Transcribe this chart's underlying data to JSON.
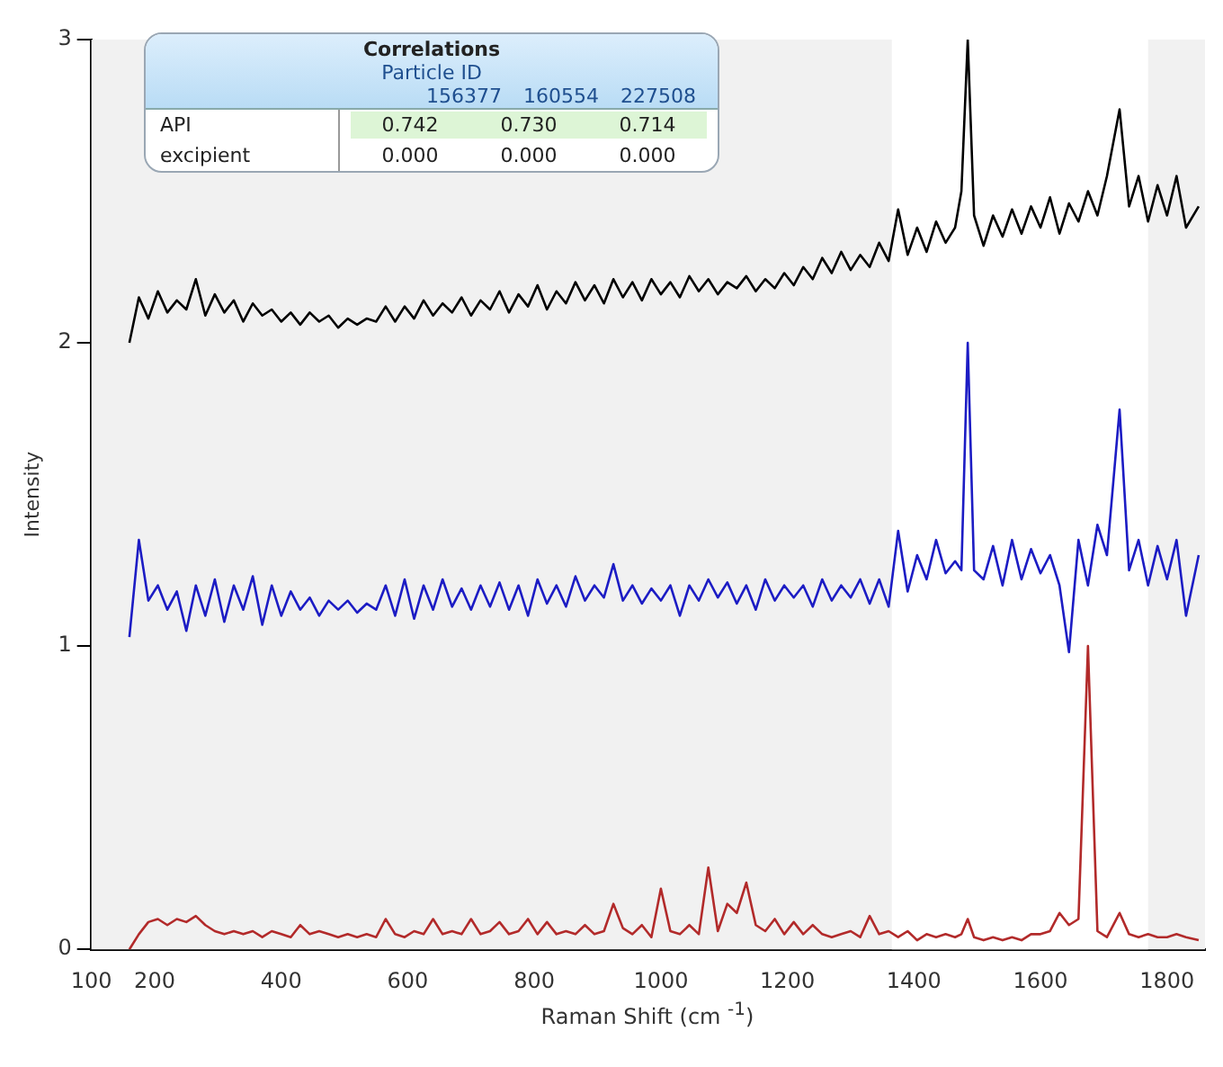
{
  "chart_data": {
    "type": "line",
    "xlabel": "Raman Shift (cm $^{-1}$)",
    "ylabel": "Intensity",
    "annotations": [
      "Correlations",
      "Particle ID",
      "156377",
      "160554",
      "227508",
      "API",
      "0.742",
      "0.730",
      "0.714",
      "excipient",
      "0.000",
      "0.000",
      "0.000"
    ],
    "x": [
      160,
      175,
      190,
      205,
      220,
      235,
      250,
      265,
      280,
      295,
      310,
      325,
      340,
      355,
      370,
      385,
      400,
      415,
      430,
      445,
      460,
      475,
      490,
      505,
      520,
      535,
      550,
      565,
      580,
      595,
      610,
      625,
      640,
      655,
      670,
      685,
      700,
      715,
      730,
      745,
      760,
      775,
      790,
      805,
      820,
      835,
      850,
      865,
      880,
      895,
      910,
      925,
      940,
      955,
      970,
      985,
      1000,
      1015,
      1030,
      1045,
      1060,
      1075,
      1090,
      1105,
      1120,
      1135,
      1150,
      1165,
      1180,
      1195,
      1210,
      1225,
      1240,
      1255,
      1270,
      1285,
      1300,
      1315,
      1330,
      1345,
      1360,
      1375,
      1390,
      1405,
      1420,
      1435,
      1450,
      1465,
      1475,
      1485,
      1495,
      1510,
      1525,
      1540,
      1555,
      1570,
      1585,
      1600,
      1615,
      1630,
      1645,
      1660,
      1675,
      1690,
      1705,
      1725,
      1740,
      1755,
      1770,
      1785,
      1800,
      1815,
      1830,
      1850
    ],
    "series": [
      {
        "color": "#000000",
        "values": [
          2.0,
          2.15,
          2.08,
          2.17,
          2.1,
          2.14,
          2.11,
          2.21,
          2.09,
          2.16,
          2.1,
          2.14,
          2.07,
          2.13,
          2.09,
          2.11,
          2.07,
          2.1,
          2.06,
          2.1,
          2.07,
          2.09,
          2.05,
          2.08,
          2.06,
          2.08,
          2.07,
          2.12,
          2.07,
          2.12,
          2.08,
          2.14,
          2.09,
          2.13,
          2.1,
          2.15,
          2.09,
          2.14,
          2.11,
          2.17,
          2.1,
          2.16,
          2.12,
          2.19,
          2.11,
          2.17,
          2.13,
          2.2,
          2.14,
          2.19,
          2.13,
          2.21,
          2.15,
          2.2,
          2.14,
          2.21,
          2.16,
          2.2,
          2.15,
          2.22,
          2.17,
          2.21,
          2.16,
          2.2,
          2.18,
          2.22,
          2.17,
          2.21,
          2.18,
          2.23,
          2.19,
          2.25,
          2.21,
          2.28,
          2.23,
          2.3,
          2.24,
          2.29,
          2.25,
          2.33,
          2.27,
          2.44,
          2.29,
          2.38,
          2.3,
          2.4,
          2.33,
          2.38,
          2.5,
          3.0,
          2.42,
          2.32,
          2.42,
          2.35,
          2.44,
          2.36,
          2.45,
          2.38,
          2.48,
          2.36,
          2.46,
          2.4,
          2.5,
          2.42,
          2.55,
          2.77,
          2.45,
          2.55,
          2.4,
          2.52,
          2.42,
          2.55,
          2.38,
          2.45
        ]
      },
      {
        "color": "#1c1cc4",
        "values": [
          1.03,
          1.35,
          1.15,
          1.2,
          1.12,
          1.18,
          1.05,
          1.2,
          1.1,
          1.22,
          1.08,
          1.2,
          1.12,
          1.23,
          1.07,
          1.2,
          1.1,
          1.18,
          1.12,
          1.16,
          1.1,
          1.15,
          1.12,
          1.15,
          1.11,
          1.14,
          1.12,
          1.2,
          1.1,
          1.22,
          1.09,
          1.2,
          1.12,
          1.22,
          1.13,
          1.19,
          1.12,
          1.2,
          1.13,
          1.21,
          1.12,
          1.2,
          1.1,
          1.22,
          1.14,
          1.2,
          1.13,
          1.23,
          1.15,
          1.2,
          1.16,
          1.27,
          1.15,
          1.2,
          1.14,
          1.19,
          1.15,
          1.2,
          1.1,
          1.2,
          1.15,
          1.22,
          1.16,
          1.21,
          1.14,
          1.2,
          1.12,
          1.22,
          1.15,
          1.2,
          1.16,
          1.2,
          1.13,
          1.22,
          1.15,
          1.2,
          1.16,
          1.22,
          1.14,
          1.22,
          1.13,
          1.38,
          1.18,
          1.3,
          1.22,
          1.35,
          1.24,
          1.28,
          1.25,
          2.0,
          1.25,
          1.22,
          1.33,
          1.2,
          1.35,
          1.22,
          1.32,
          1.24,
          1.3,
          1.2,
          0.98,
          1.35,
          1.2,
          1.4,
          1.3,
          1.78,
          1.25,
          1.35,
          1.2,
          1.33,
          1.22,
          1.35,
          1.1,
          1.3
        ]
      },
      {
        "color": "#b22a2a",
        "values": [
          0.0,
          0.05,
          0.09,
          0.1,
          0.08,
          0.1,
          0.09,
          0.11,
          0.08,
          0.06,
          0.05,
          0.06,
          0.05,
          0.06,
          0.04,
          0.06,
          0.05,
          0.04,
          0.08,
          0.05,
          0.06,
          0.05,
          0.04,
          0.05,
          0.04,
          0.05,
          0.04,
          0.1,
          0.05,
          0.04,
          0.06,
          0.05,
          0.1,
          0.05,
          0.06,
          0.05,
          0.1,
          0.05,
          0.06,
          0.09,
          0.05,
          0.06,
          0.1,
          0.05,
          0.09,
          0.05,
          0.06,
          0.05,
          0.08,
          0.05,
          0.06,
          0.15,
          0.07,
          0.05,
          0.08,
          0.04,
          0.2,
          0.06,
          0.05,
          0.08,
          0.05,
          0.27,
          0.06,
          0.15,
          0.12,
          0.22,
          0.08,
          0.06,
          0.1,
          0.05,
          0.09,
          0.05,
          0.08,
          0.05,
          0.04,
          0.05,
          0.06,
          0.04,
          0.11,
          0.05,
          0.06,
          0.04,
          0.06,
          0.03,
          0.05,
          0.04,
          0.05,
          0.04,
          0.05,
          0.1,
          0.04,
          0.03,
          0.04,
          0.03,
          0.04,
          0.03,
          0.05,
          0.05,
          0.06,
          0.12,
          0.08,
          0.1,
          1.0,
          0.06,
          0.04,
          0.12,
          0.05,
          0.04,
          0.05,
          0.04,
          0.04,
          0.05,
          0.04,
          0.03
        ]
      }
    ],
    "xlim": [
      100,
      1860
    ],
    "xticks": [
      100,
      200,
      400,
      600,
      800,
      1000,
      1200,
      1400,
      1600,
      1800
    ],
    "ylim": [
      0,
      3
    ],
    "yticks": [
      0,
      1,
      2,
      3
    ],
    "bands": [
      {
        "axis": "x",
        "from": 1365,
        "to": 1770,
        "color": "#ffffff"
      }
    ],
    "grid": false,
    "legend": false,
    "marker": "none",
    "line_style": "solid"
  }
}
